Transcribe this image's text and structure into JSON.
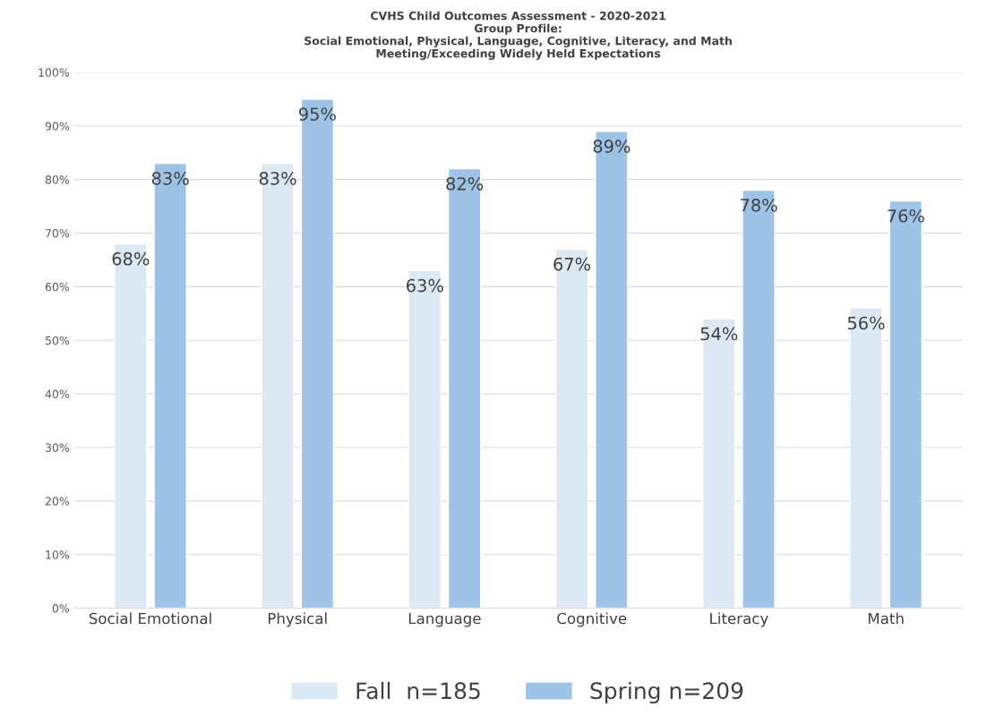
{
  "chart_data": {
    "type": "bar",
    "title": "CVHS Child Outcomes Assessment - 2020-2021\nGroup Profile:\nSocial Emotional, Physical, Language, Cognitive, Literacy, and Math\nMeeting/Exceeding Widely Held Expectations",
    "categories": [
      "Social Emotional",
      "Physical",
      "Language",
      "Cognitive",
      "Literacy",
      "Math"
    ],
    "series": [
      {
        "name": "Fall  n=185",
        "color": "#dde8f5",
        "values": [
          68,
          83,
          63,
          67,
          54,
          56
        ],
        "value_labels": [
          "68%",
          "83%",
          "63%",
          "67%",
          "54%",
          "56%"
        ]
      },
      {
        "name": "Spring n=209",
        "color": "#9dc3e6",
        "values": [
          83,
          95,
          82,
          89,
          78,
          76
        ],
        "value_labels": [
          "83%",
          "95%",
          "82%",
          "89%",
          "78%",
          "76%"
        ]
      }
    ],
    "ylim": [
      0,
      100
    ],
    "yticks": [
      {
        "value": 0,
        "label": "0%"
      },
      {
        "value": 10,
        "label": "10%"
      },
      {
        "value": 20,
        "label": "20%"
      },
      {
        "value": 30,
        "label": "30%"
      },
      {
        "value": 40,
        "label": "40%"
      },
      {
        "value": 50,
        "label": "50%"
      },
      {
        "value": 60,
        "label": "60%"
      },
      {
        "value": 70,
        "label": "70%"
      },
      {
        "value": 80,
        "label": "80%"
      },
      {
        "value": 90,
        "label": "90%"
      },
      {
        "value": 100,
        "label": "100%"
      }
    ],
    "grid": "y",
    "legend": "bottom"
  }
}
